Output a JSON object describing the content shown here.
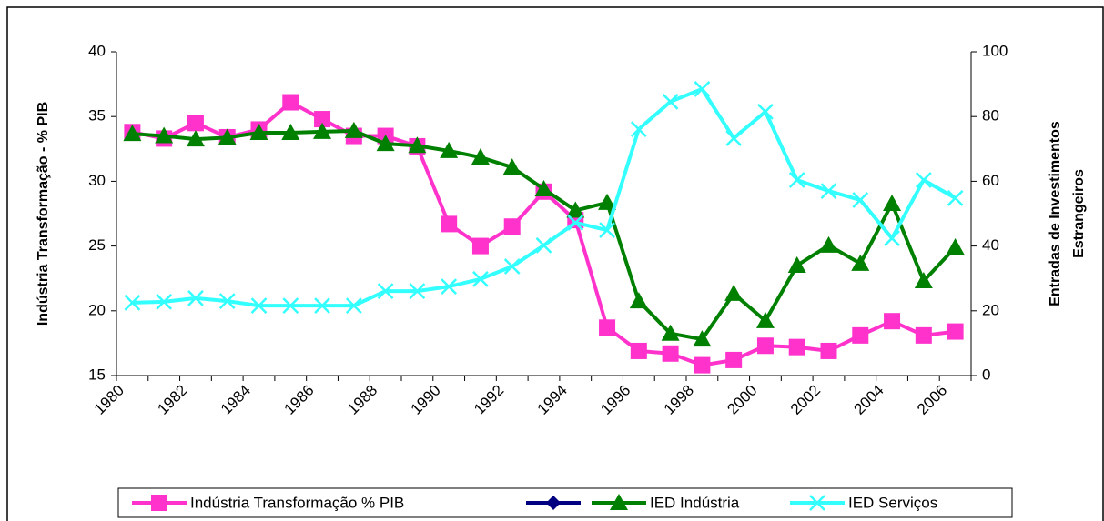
{
  "chart_data": {
    "type": "line",
    "ylabel": "Indústria Transformação - % PIB",
    "y2label": [
      "Entradas de Investimentos",
      "Estrangeiros"
    ],
    "categories": [
      "1980",
      null,
      "1982",
      null,
      "1984",
      null,
      "1986",
      null,
      "1988",
      null,
      "1990",
      null,
      "1992",
      null,
      "1994",
      null,
      "1996",
      null,
      "1998",
      null,
      "2000",
      null,
      "2002",
      null,
      "2004",
      null,
      "2006"
    ],
    "ylim": [
      15,
      40
    ],
    "yticks": [
      15,
      20,
      25,
      30,
      35,
      40
    ],
    "y2lim": [
      0,
      100
    ],
    "y2ticks": [
      0,
      20,
      40,
      60,
      80,
      100
    ],
    "legend": "bottom",
    "series": [
      {
        "name": "Indústria Transformação % PIB",
        "color": "#ff33cc",
        "marker": "square",
        "values": [
          33.8,
          33.3,
          34.5,
          33.4,
          34.0,
          36.1,
          34.8,
          33.5,
          33.5,
          32.7,
          26.7,
          25.0,
          26.5,
          29.2,
          27.0,
          18.7,
          16.9,
          16.7,
          15.8,
          16.2,
          17.3,
          17.2,
          16.9,
          18.1,
          19.2,
          18.1,
          18.4
        ]
      },
      {
        "name": null,
        "color": "#000080",
        "marker": "diamond",
        "values": [
          null,
          null,
          null,
          null,
          null,
          null,
          null,
          null,
          null,
          null,
          null,
          null,
          null,
          null,
          null,
          null,
          null,
          null,
          null,
          null,
          null,
          null,
          null,
          null,
          null,
          null,
          null
        ]
      },
      {
        "name": "IED Indústria",
        "color": "#008000",
        "marker": "triangle",
        "axis": "y2",
        "values": [
          74.7,
          74.0,
          73.0,
          73.5,
          75.0,
          75.0,
          75.3,
          75.6,
          71.6,
          71.0,
          69.4,
          67.4,
          64.3,
          57.6,
          51.0,
          53.4,
          23.0,
          13.0,
          11.2,
          25.3,
          16.9,
          34.0,
          40.2,
          34.6,
          53.1,
          29.2,
          39.6
        ]
      },
      {
        "name": "IED Serviços",
        "color": "#33ffff",
        "marker": "x",
        "axis": "y2",
        "values": [
          22.5,
          22.8,
          23.9,
          23.0,
          21.6,
          21.6,
          21.6,
          21.6,
          26.1,
          26.1,
          27.5,
          29.8,
          33.7,
          40.2,
          47.2,
          44.9,
          76.1,
          84.6,
          88.5,
          73.3,
          81.5,
          60.4,
          57.0,
          54.2,
          42.4,
          60.4,
          54.8
        ]
      }
    ]
  }
}
